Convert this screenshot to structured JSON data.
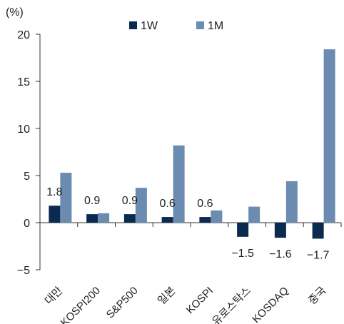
{
  "chart_data": {
    "type": "bar",
    "unit_label": "(%)",
    "categories": [
      "대만",
      "KOSPI200",
      "S&P500",
      "일본",
      "KOSPI",
      "유로스탁스",
      "KOSDAQ",
      "중국"
    ],
    "series": [
      {
        "name": "1W",
        "color": "#0b2a4f",
        "values": [
          1.8,
          0.9,
          0.9,
          0.6,
          0.6,
          -1.5,
          -1.6,
          -1.7
        ]
      },
      {
        "name": "1M",
        "color": "#6b8bb0",
        "values": [
          5.3,
          1.0,
          3.7,
          8.2,
          1.3,
          1.7,
          4.4,
          18.4
        ]
      }
    ],
    "data_labels": [
      "1.8",
      "0.9",
      "0.9",
      "0.6",
      "0.6",
      "−1.5",
      "−1.6",
      "−1.7"
    ],
    "yticks": [
      "20",
      "15",
      "10",
      "5",
      "0",
      "−5"
    ],
    "ytick_values": [
      20,
      15,
      10,
      5,
      0,
      -5
    ],
    "ylim": [
      -5,
      20
    ],
    "legend": "top-center",
    "grid": false
  }
}
